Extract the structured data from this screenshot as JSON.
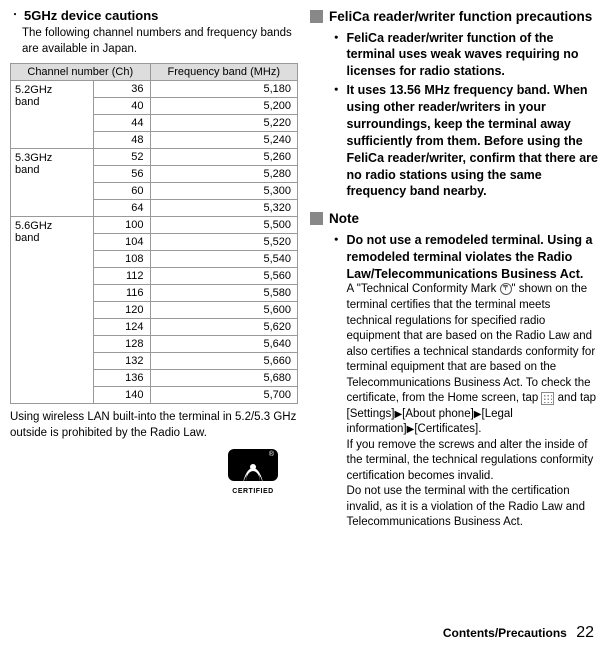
{
  "left": {
    "title": "5GHz device cautions",
    "desc": "The following channel numbers and frequency bands are available in Japan.",
    "table": {
      "headers": [
        "",
        "Channel number (Ch)",
        "Frequency band (MHz)"
      ],
      "groups": [
        {
          "band": "5.2GHz band",
          "rows": [
            [
              "36",
              "5,180"
            ],
            [
              "40",
              "5,200"
            ],
            [
              "44",
              "5,220"
            ],
            [
              "48",
              "5,240"
            ]
          ]
        },
        {
          "band": "5.3GHz band",
          "rows": [
            [
              "52",
              "5,260"
            ],
            [
              "56",
              "5,280"
            ],
            [
              "60",
              "5,300"
            ],
            [
              "64",
              "5,320"
            ]
          ]
        },
        {
          "band": "5.6GHz band",
          "rows": [
            [
              "100",
              "5,500"
            ],
            [
              "104",
              "5,520"
            ],
            [
              "108",
              "5,540"
            ],
            [
              "112",
              "5,560"
            ],
            [
              "116",
              "5,580"
            ],
            [
              "120",
              "5,600"
            ],
            [
              "124",
              "5,620"
            ],
            [
              "128",
              "5,640"
            ],
            [
              "132",
              "5,660"
            ],
            [
              "136",
              "5,680"
            ],
            [
              "140",
              "5,700"
            ]
          ]
        }
      ]
    },
    "note": "Using wireless LAN built-into the terminal in 5.2/5.3 GHz outside is prohibited by the Radio Law.",
    "wifi_label": "CERTIFIED"
  },
  "right": {
    "section1_title": "FeliCa reader/writer function precautions",
    "bullets1": [
      "FeliCa reader/writer function of the terminal uses weak waves requiring no licenses for radio stations.",
      "It uses 13.56 MHz frequency band. When using other reader/writers in your surroundings, keep the terminal away sufficiently from them. Before using the FeliCa reader/writer, confirm that there are no radio stations using the same frequency band nearby."
    ],
    "section2_title": "Note",
    "bullet2_bold": "Do not use a remodeled terminal. Using a remodeled terminal violates the Radio Law/Telecommunications Business Act.",
    "bullet2_body_a": "A \"Technical Conformity Mark ",
    "bullet2_body_b": "\" shown on the terminal certifies that the terminal meets technical regulations for specified radio equipment that are based on the Radio Law and also certifies a technical standards conformity for terminal equipment that are based on the Telecommunications Business Act. To check the certificate, from the Home screen, tap ",
    "bullet2_body_c": " and tap [Settings]",
    "bullet2_body_d": "[About phone]",
    "bullet2_body_e": "[Legal information]",
    "bullet2_body_f": "[Certificates].",
    "bullet2_body_g": "If you remove the screws and alter the inside of the terminal, the technical regulations conformity certification becomes invalid.",
    "bullet2_body_h": "Do not use the terminal with the certification invalid, as it is a violation of the Radio Law and Telecommunications Business Act."
  },
  "footer": {
    "label": "Contents/Precautions",
    "page": "22"
  }
}
